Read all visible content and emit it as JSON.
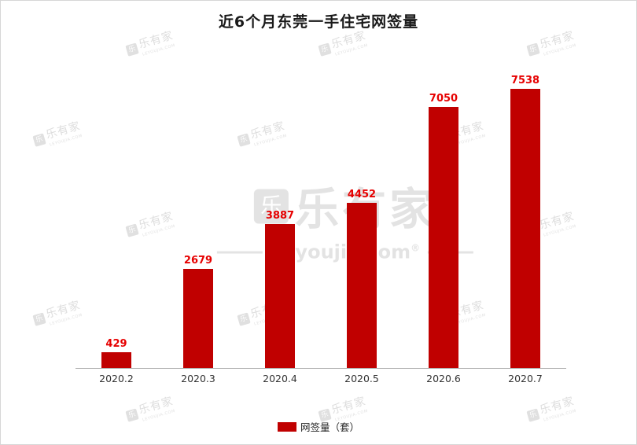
{
  "chart_data": {
    "type": "bar",
    "title": "近6个月东莞一手住宅网签量",
    "categories": [
      "2020.2",
      "2020.3",
      "2020.4",
      "2020.5",
      "2020.6",
      "2020.7"
    ],
    "values": [
      429,
      2679,
      3887,
      4452,
      7050,
      7538
    ],
    "legend_label": "网签量（套）",
    "legend_position": "bottom",
    "bar_color": "#c00000",
    "value_label_color": "#e60000",
    "ylim": [
      0,
      8000
    ],
    "grid": false,
    "xlabel": "",
    "ylabel": ""
  },
  "watermark": {
    "logo_char": "乐",
    "cn": "乐有家",
    "en": "LEYOUJIA.COM",
    "big_en": "Leyoujia.com",
    "reg": "®"
  }
}
